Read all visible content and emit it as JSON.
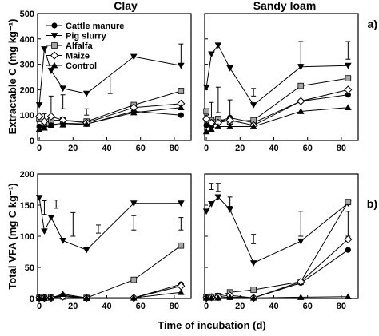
{
  "figure": {
    "xlabel": "Time of incubation (d)",
    "column_titles": [
      "Clay",
      "Sandy loam"
    ],
    "row_tags": [
      "a)",
      "b)"
    ]
  },
  "legend": [
    {
      "label": "Cattle manure",
      "marker": "circle-filled"
    },
    {
      "label": "Pig slurry",
      "marker": "triangle-down-filled"
    },
    {
      "label": "Alfalfa",
      "marker": "square-gray"
    },
    {
      "label": "Maize",
      "marker": "diamond-open"
    },
    {
      "label": "Control",
      "marker": "triangle-up-filled"
    }
  ],
  "colors": {
    "ink": "#000000",
    "alfalfa_fill": "#a6a6a6",
    "open_fill": "#ffffff"
  },
  "chart_data": [
    {
      "type": "line",
      "panel": "a-clay",
      "title": "Clay",
      "ylabel": "Extractable C (mg kg⁻¹)",
      "xlim": [
        -1,
        90
      ],
      "ylim": [
        0,
        500
      ],
      "xticks": [
        0,
        20,
        40,
        60,
        80
      ],
      "yticks": [
        0,
        100,
        200,
        300,
        400,
        500
      ],
      "x": [
        0,
        3,
        7,
        14,
        28,
        56,
        84
      ],
      "series": [
        {
          "name": "Cattle manure",
          "values": [
            55,
            58,
            62,
            68,
            65,
            115,
            100
          ]
        },
        {
          "name": "Pig slurry",
          "values": [
            140,
            360,
            275,
            205,
            185,
            330,
            295
          ]
        },
        {
          "name": "Alfalfa",
          "values": [
            85,
            68,
            80,
            80,
            75,
            140,
            195
          ]
        },
        {
          "name": "Maize",
          "values": [
            95,
            75,
            95,
            80,
            70,
            130,
            145
          ]
        },
        {
          "name": "Control",
          "values": [
            45,
            50,
            60,
            62,
            65,
            110,
            130
          ]
        }
      ],
      "error_bars": [
        {
          "x": 3,
          "low": 60,
          "high": 105
        },
        {
          "x": 7,
          "low": 80,
          "high": 175
        },
        {
          "x": 14,
          "low": 125,
          "high": 180
        },
        {
          "x": 28,
          "low": 100,
          "high": 125
        },
        {
          "x": 42,
          "low": 185,
          "high": 250
        },
        {
          "x": 84,
          "low": 300,
          "high": 380
        }
      ]
    },
    {
      "type": "line",
      "panel": "a-sandy-loam",
      "title": "Sandy loam",
      "xlim": [
        -1,
        90
      ],
      "ylim": [
        0,
        500
      ],
      "xticks": [
        0,
        20,
        40,
        60,
        80
      ],
      "yticks": [
        0,
        100,
        200,
        300,
        400,
        500
      ],
      "x": [
        0,
        3,
        7,
        14,
        28,
        56,
        84
      ],
      "series": [
        {
          "name": "Cattle manure",
          "values": [
            60,
            55,
            75,
            90,
            70,
            155,
            180
          ]
        },
        {
          "name": "Pig slurry",
          "values": [
            210,
            340,
            375,
            285,
            140,
            290,
            295
          ]
        },
        {
          "name": "Alfalfa",
          "values": [
            115,
            80,
            85,
            75,
            80,
            215,
            245
          ]
        },
        {
          "name": "Maize",
          "values": [
            85,
            70,
            70,
            80,
            60,
            155,
            200
          ]
        },
        {
          "name": "Control",
          "values": [
            35,
            45,
            55,
            55,
            55,
            115,
            130
          ]
        }
      ],
      "error_bars": [
        {
          "x": 3,
          "low": 80,
          "high": 150
        },
        {
          "x": 7,
          "low": 110,
          "high": 210
        },
        {
          "x": 14,
          "low": 90,
          "high": 160
        },
        {
          "x": 28,
          "low": 175,
          "high": 205
        },
        {
          "x": 56,
          "low": 300,
          "high": 390
        },
        {
          "x": 84,
          "low": 320,
          "high": 390
        }
      ]
    },
    {
      "type": "line",
      "panel": "b-clay",
      "ylabel": "Total VFA (mg C kg⁻¹)",
      "xlim": [
        -1,
        90
      ],
      "ylim": [
        0,
        200
      ],
      "xticks": [
        0,
        20,
        40,
        60,
        80
      ],
      "yticks": [
        0,
        50,
        100,
        150,
        200
      ],
      "x": [
        0,
        3,
        7,
        14,
        28,
        56,
        84
      ],
      "series": [
        {
          "name": "Cattle manure",
          "values": [
            1,
            2,
            2,
            5,
            1,
            1,
            23
          ]
        },
        {
          "name": "Pig slurry",
          "values": [
            162,
            108,
            130,
            93,
            78,
            153,
            153
          ]
        },
        {
          "name": "Alfalfa",
          "values": [
            1,
            1,
            2,
            3,
            1,
            30,
            85
          ]
        },
        {
          "name": "Maize",
          "values": [
            1,
            1,
            1,
            3,
            1,
            1,
            20
          ]
        },
        {
          "name": "Control",
          "values": [
            1,
            1,
            1,
            7,
            1,
            1,
            10
          ]
        }
      ],
      "error_bars": [
        {
          "x": 3,
          "low": 135,
          "high": 157
        },
        {
          "x": 10,
          "low": 145,
          "high": 158
        },
        {
          "x": 20,
          "low": 100,
          "high": 138
        },
        {
          "x": 35,
          "low": 105,
          "high": 118
        },
        {
          "x": 56,
          "low": 110,
          "high": 133
        },
        {
          "x": 84,
          "low": 110,
          "high": 130
        }
      ]
    },
    {
      "type": "line",
      "panel": "b-sandy-loam",
      "xlim": [
        -1,
        90
      ],
      "ylim": [
        0,
        200
      ],
      "xticks": [
        0,
        20,
        40,
        60,
        80
      ],
      "yticks": [
        0,
        50,
        100,
        150,
        200
      ],
      "x": [
        0,
        3,
        7,
        14,
        28,
        56,
        84
      ],
      "series": [
        {
          "name": "Cattle manure",
          "values": [
            1,
            2,
            1,
            2,
            1,
            25,
            78
          ]
        },
        {
          "name": "Pig slurry",
          "values": [
            140,
            152,
            163,
            143,
            57,
            92,
            153
          ]
        },
        {
          "name": "Alfalfa",
          "values": [
            2,
            3,
            4,
            10,
            14,
            27,
            155
          ]
        },
        {
          "name": "Maize",
          "values": [
            1,
            2,
            3,
            5,
            1,
            27,
            95
          ]
        },
        {
          "name": "Control",
          "values": [
            1,
            1,
            1,
            2,
            1,
            2,
            3
          ]
        }
      ],
      "error_bars": [
        {
          "x": 3,
          "low": 175,
          "high": 185
        },
        {
          "x": 7,
          "low": 172,
          "high": 185
        },
        {
          "x": 14,
          "low": 148,
          "high": 163
        },
        {
          "x": 28,
          "low": 88,
          "high": 103
        },
        {
          "x": 56,
          "low": 100,
          "high": 140
        },
        {
          "x": 84,
          "low": 100,
          "high": 140
        }
      ]
    }
  ]
}
